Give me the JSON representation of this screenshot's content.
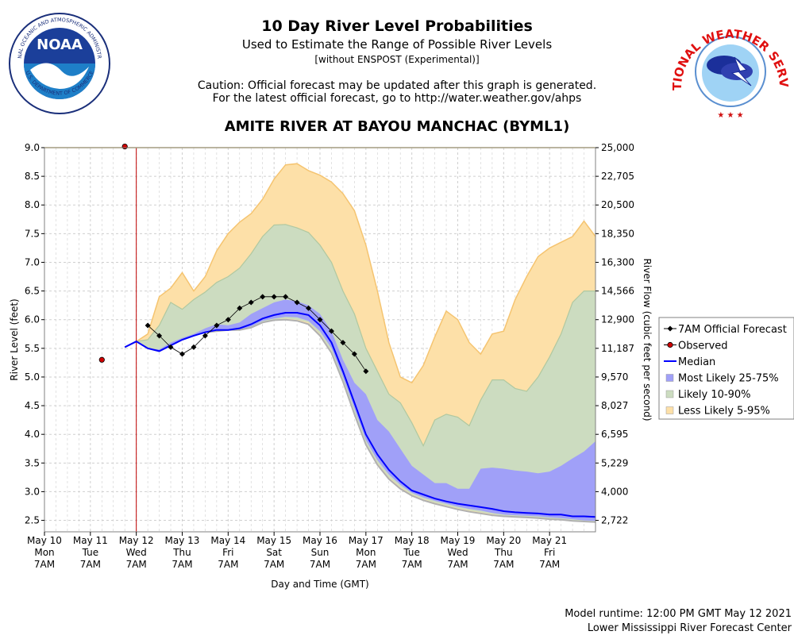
{
  "header": {
    "title": "10 Day River Level Probabilities",
    "subtitle": "Used to Estimate the Range of Possible River Levels",
    "subtitle2": "[without ENSPOST (Experimental)]",
    "caution1": "Caution: Official forecast may be updated after this graph is generated.",
    "caution2": "For the latest official forecast, go to http://water.weather.gov/ahps",
    "station": "AMITE RIVER AT BAYOU MANCHAC (BYML1)"
  },
  "logos": {
    "noaa_text": "NOAA",
    "noaa_ring": "NATIONAL OCEANIC AND ATMOSPHERIC ADMINISTRATION",
    "noaa_ring_bottom": "U.S. DEPARTMENT OF COMMERCE",
    "nws_ring": "NATIONAL WEATHER SERVICE"
  },
  "footer": {
    "runtime": "Model runtime: 12:00 PM GMT May 12 2021",
    "center": "Lower Mississippi River Forecast Center"
  },
  "colors": {
    "less_likely": "#fde0a8",
    "less_likely_edge": "#f5c470",
    "likely": "#ccdcc0",
    "likely_edge": "#b0c8a0",
    "most_likely": "#a0a0f8",
    "median": "#0000ff",
    "observed": "#d00000",
    "now_line": "#c00000",
    "grid": "#cfcfcf"
  },
  "chart_data": {
    "type": "area",
    "ylabel": "River Level (feet)",
    "y2label": "River Flow (cubic feet per second)",
    "xlabel": "Day and Time (GMT)",
    "ylim": [
      2.3,
      9.0
    ],
    "xlim": [
      0,
      12
    ],
    "y_ticks": [
      2.5,
      3.0,
      3.5,
      4.0,
      4.5,
      5.0,
      5.5,
      6.0,
      6.5,
      7.0,
      7.5,
      8.0,
      8.5,
      9.0
    ],
    "y_tick_labels": [
      "2.5",
      "3.0",
      "3.5",
      "4.0",
      "4.5",
      "5.0",
      "5.5",
      "6.0",
      "6.5",
      "7.0",
      "7.5",
      "8.0",
      "8.5",
      "9.0"
    ],
    "y2_tick_labels": [
      "2,722",
      "4,000",
      "5,229",
      "6,595",
      "8,027",
      "9,570",
      "11,187",
      "12,900",
      "14,566",
      "16,300",
      "18,350",
      "20,500",
      "22,705",
      "25,000"
    ],
    "x_ticks": [
      {
        "x": 0,
        "lines": [
          "May 10",
          "Mon",
          "7AM"
        ]
      },
      {
        "x": 1,
        "lines": [
          "May 11",
          "Tue",
          "7AM"
        ]
      },
      {
        "x": 2,
        "lines": [
          "May 12",
          "Wed",
          "7AM"
        ]
      },
      {
        "x": 3,
        "lines": [
          "May 13",
          "Thu",
          "7AM"
        ]
      },
      {
        "x": 4,
        "lines": [
          "May 14",
          "Fri",
          "7AM"
        ]
      },
      {
        "x": 5,
        "lines": [
          "May 15",
          "Sat",
          "7AM"
        ]
      },
      {
        "x": 6,
        "lines": [
          "May 16",
          "Sun",
          "7AM"
        ]
      },
      {
        "x": 7,
        "lines": [
          "May 17",
          "Mon",
          "7AM"
        ]
      },
      {
        "x": 8,
        "lines": [
          "May 18",
          "Tue",
          "7AM"
        ]
      },
      {
        "x": 9,
        "lines": [
          "May 19",
          "Wed",
          "7AM"
        ]
      },
      {
        "x": 10,
        "lines": [
          "May 20",
          "Thu",
          "7AM"
        ]
      },
      {
        "x": 11,
        "lines": [
          "May 21",
          "Fri",
          "7AM"
        ]
      }
    ],
    "now_x": 2.0,
    "band_x": [
      1.75,
      2.0,
      2.25,
      2.5,
      2.75,
      3.0,
      3.25,
      3.5,
      3.75,
      4.0,
      4.25,
      4.5,
      4.75,
      5.0,
      5.25,
      5.5,
      5.75,
      6.0,
      6.25,
      6.5,
      6.75,
      7.0,
      7.25,
      7.5,
      7.75,
      8.0,
      8.25,
      8.5,
      8.75,
      9.0,
      9.25,
      9.5,
      9.75,
      10.0,
      10.25,
      10.5,
      10.75,
      11.0,
      11.25,
      11.5,
      11.75,
      12.0
    ],
    "less_likely_hi": [
      5.52,
      5.62,
      5.75,
      6.4,
      6.55,
      6.82,
      6.5,
      6.75,
      7.2,
      7.5,
      7.7,
      7.85,
      8.1,
      8.45,
      8.7,
      8.72,
      8.6,
      8.52,
      8.4,
      8.2,
      7.9,
      7.3,
      6.5,
      5.6,
      5.0,
      4.9,
      5.2,
      5.7,
      6.15,
      6.0,
      5.6,
      5.4,
      5.75,
      5.8,
      6.35,
      6.75,
      7.1,
      7.25,
      7.35,
      7.45,
      7.72,
      7.45
    ],
    "likely_hi": [
      5.52,
      5.62,
      5.65,
      5.9,
      6.3,
      6.18,
      6.35,
      6.48,
      6.65,
      6.75,
      6.9,
      7.15,
      7.45,
      7.65,
      7.66,
      7.6,
      7.52,
      7.3,
      7.0,
      6.5,
      6.1,
      5.5,
      5.1,
      4.7,
      4.55,
      4.2,
      3.8,
      4.25,
      4.35,
      4.3,
      4.15,
      4.6,
      4.95,
      4.95,
      4.8,
      4.75,
      5.0,
      5.35,
      5.75,
      6.3,
      6.5,
      6.5
    ],
    "most_likely_hi": [
      5.52,
      5.62,
      5.5,
      5.48,
      5.6,
      5.68,
      5.75,
      5.85,
      5.92,
      5.9,
      5.95,
      6.1,
      6.2,
      6.3,
      6.35,
      6.32,
      6.25,
      6.1,
      5.8,
      5.3,
      4.9,
      4.7,
      4.25,
      4.05,
      3.75,
      3.45,
      3.3,
      3.15,
      3.15,
      3.05,
      3.05,
      3.4,
      3.42,
      3.4,
      3.37,
      3.35,
      3.32,
      3.35,
      3.45,
      3.58,
      3.7,
      3.88
    ],
    "median": [
      5.52,
      5.62,
      5.5,
      5.45,
      5.55,
      5.65,
      5.72,
      5.78,
      5.82,
      5.82,
      5.85,
      5.92,
      6.02,
      6.08,
      6.12,
      6.12,
      6.08,
      5.9,
      5.6,
      5.1,
      4.55,
      4.0,
      3.65,
      3.38,
      3.18,
      3.02,
      2.95,
      2.88,
      2.83,
      2.79,
      2.76,
      2.73,
      2.7,
      2.66,
      2.64,
      2.63,
      2.62,
      2.6,
      2.6,
      2.57,
      2.57,
      2.56
    ],
    "most_likely_lo": [
      5.52,
      5.62,
      5.5,
      5.45,
      5.55,
      5.65,
      5.72,
      5.78,
      5.8,
      5.82,
      5.82,
      5.88,
      5.98,
      6.02,
      6.05,
      6.04,
      5.98,
      5.8,
      5.5,
      5.0,
      4.45,
      3.9,
      3.55,
      3.3,
      3.12,
      2.98,
      2.9,
      2.84,
      2.79,
      2.74,
      2.7,
      2.67,
      2.63,
      2.6,
      2.59,
      2.58,
      2.57,
      2.55,
      2.54,
      2.52,
      2.5,
      2.49
    ],
    "likely_lo": [
      5.52,
      5.62,
      5.5,
      5.45,
      5.55,
      5.65,
      5.72,
      5.78,
      5.8,
      5.82,
      5.82,
      5.87,
      5.96,
      6.0,
      6.02,
      6.0,
      5.95,
      5.75,
      5.45,
      4.95,
      4.38,
      3.85,
      3.5,
      3.25,
      3.08,
      2.95,
      2.87,
      2.81,
      2.76,
      2.71,
      2.67,
      2.64,
      2.61,
      2.58,
      2.57,
      2.56,
      2.55,
      2.53,
      2.52,
      2.5,
      2.49,
      2.48
    ],
    "less_likely_lo": [
      5.52,
      5.62,
      5.5,
      5.45,
      5.55,
      5.65,
      5.72,
      5.78,
      5.8,
      5.82,
      5.82,
      5.86,
      5.95,
      5.99,
      6.0,
      5.98,
      5.92,
      5.72,
      5.42,
      4.92,
      4.35,
      3.82,
      3.47,
      3.22,
      3.05,
      2.93,
      2.85,
      2.79,
      2.74,
      2.69,
      2.65,
      2.62,
      2.59,
      2.57,
      2.56,
      2.55,
      2.54,
      2.52,
      2.51,
      2.49,
      2.48,
      2.47
    ],
    "official_forecast": {
      "x": [
        2.25,
        2.5,
        2.75,
        3.0,
        3.25,
        3.5,
        3.75,
        4.0,
        4.25,
        4.5,
        4.75,
        5.0,
        5.25,
        5.5,
        5.75,
        6.0,
        6.25,
        6.5,
        6.75,
        7.0
      ],
      "y": [
        5.9,
        5.72,
        5.52,
        5.4,
        5.52,
        5.72,
        5.9,
        6.0,
        6.2,
        6.3,
        6.4,
        6.4,
        6.4,
        6.3,
        6.2,
        6.0,
        5.8,
        5.6,
        5.4,
        5.1
      ]
    },
    "observed": {
      "x": [
        1.25,
        1.75
      ],
      "y": [
        5.3,
        9.02
      ]
    },
    "legend": [
      {
        "key": "official",
        "label": "7AM Official Forecast"
      },
      {
        "key": "observed",
        "label": "Observed"
      },
      {
        "key": "median",
        "label": "Median"
      },
      {
        "key": "most_likely",
        "label": "Most Likely 25-75%"
      },
      {
        "key": "likely",
        "label": "Likely 10-90%"
      },
      {
        "key": "less_likely",
        "label": "Less Likely 5-95%"
      }
    ]
  }
}
